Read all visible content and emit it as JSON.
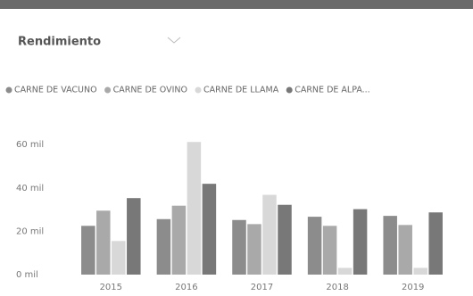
{
  "dropdown": "Rendimiento",
  "chart_data": {
    "type": "bar",
    "categories": [
      "2015",
      "2016",
      "2017",
      "2018",
      "2019"
    ],
    "series": [
      {
        "name": "CARNE DE VACUNO",
        "color": "#8c8c8c",
        "values": [
          22.5,
          25.6,
          25.2,
          26.7,
          27.1
        ]
      },
      {
        "name": "CARNE DE OVINO",
        "color": "#a9a9a9",
        "values": [
          29.5,
          31.8,
          23.3,
          22.5,
          22.9
        ]
      },
      {
        "name": "CARNE DE LLAMA",
        "color": "#d8d8d8",
        "values": [
          15.5,
          61.2,
          36.8,
          3.1,
          3.1
        ]
      },
      {
        "name": "CARNE DE ALPA...",
        "color": "#787878",
        "values": [
          35.3,
          41.9,
          32.2,
          30.2,
          28.7
        ]
      }
    ],
    "ylim": [
      0,
      65
    ],
    "yticks": [
      {
        "value": 0,
        "label": "0 mil"
      },
      {
        "value": 20,
        "label": "20 mil"
      },
      {
        "value": 40,
        "label": "40 mil"
      },
      {
        "value": 60,
        "label": "60 mil"
      }
    ],
    "grid": false
  }
}
